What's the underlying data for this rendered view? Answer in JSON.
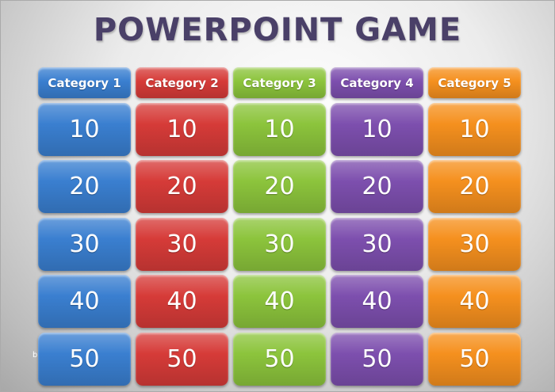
{
  "title": "POWERPOINT GAME",
  "watermark": "blog",
  "categories": [
    {
      "label": "Category 1",
      "color": "#3a7fd0"
    },
    {
      "label": "Category 2",
      "color": "#d63b38"
    },
    {
      "label": "Category 3",
      "color": "#8cc43c"
    },
    {
      "label": "Category 4",
      "color": "#7d4fae"
    },
    {
      "label": "Category 5",
      "color": "#f5901e"
    }
  ],
  "values": [
    "10",
    "20",
    "30",
    "40",
    "50"
  ]
}
